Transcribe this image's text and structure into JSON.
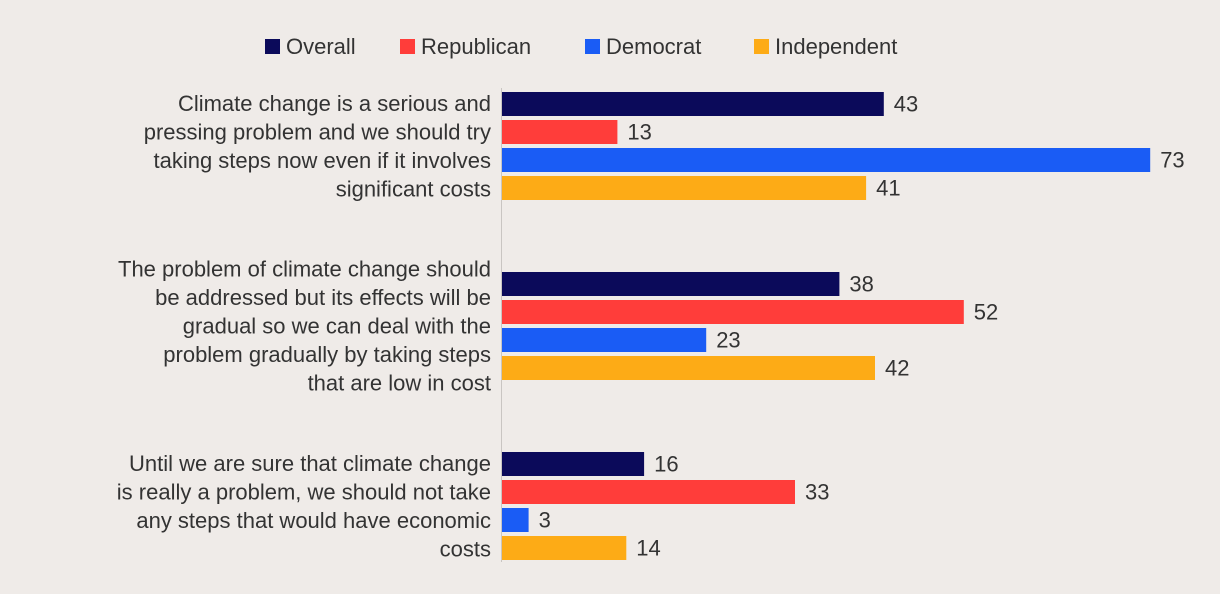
{
  "chart_data": {
    "type": "bar",
    "orientation": "horizontal",
    "title": "",
    "xlabel": "",
    "ylabel": "",
    "xlim": [
      0,
      75
    ],
    "grid": false,
    "legend_position": "top",
    "categories": [
      "Climate change is a serious and pressing problem and we should try taking steps now even if it involves significant costs",
      "The problem of climate change should be addressed but its effects will be gradual so we can deal with the problem gradually by taking steps that are low in cost",
      "Until we are sure that climate change is really a problem, we should not take any steps that would have economic costs"
    ],
    "category_lines": [
      [
        "Climate change is a serious and",
        "pressing problem and we should try",
        "taking steps now even if it involves",
        "significant costs"
      ],
      [
        "The problem of climate change should",
        "be addressed but its effects will be",
        "gradual so we can deal with the",
        "problem gradually by taking steps",
        "that are low in cost"
      ],
      [
        "Until we are sure that climate change",
        "is really a problem, we should not take",
        "any steps that would have economic",
        "costs"
      ]
    ],
    "series": [
      {
        "name": "Overall",
        "color": "#0b0a5a",
        "values": [
          43,
          38,
          16
        ]
      },
      {
        "name": "Republican",
        "color": "#ff3d3a",
        "values": [
          13,
          52,
          33
        ]
      },
      {
        "name": "Democrat",
        "color": "#1a5cf5",
        "values": [
          73,
          23,
          3
        ]
      },
      {
        "name": "Independent",
        "color": "#fdab16",
        "values": [
          41,
          42,
          14
        ]
      }
    ]
  }
}
